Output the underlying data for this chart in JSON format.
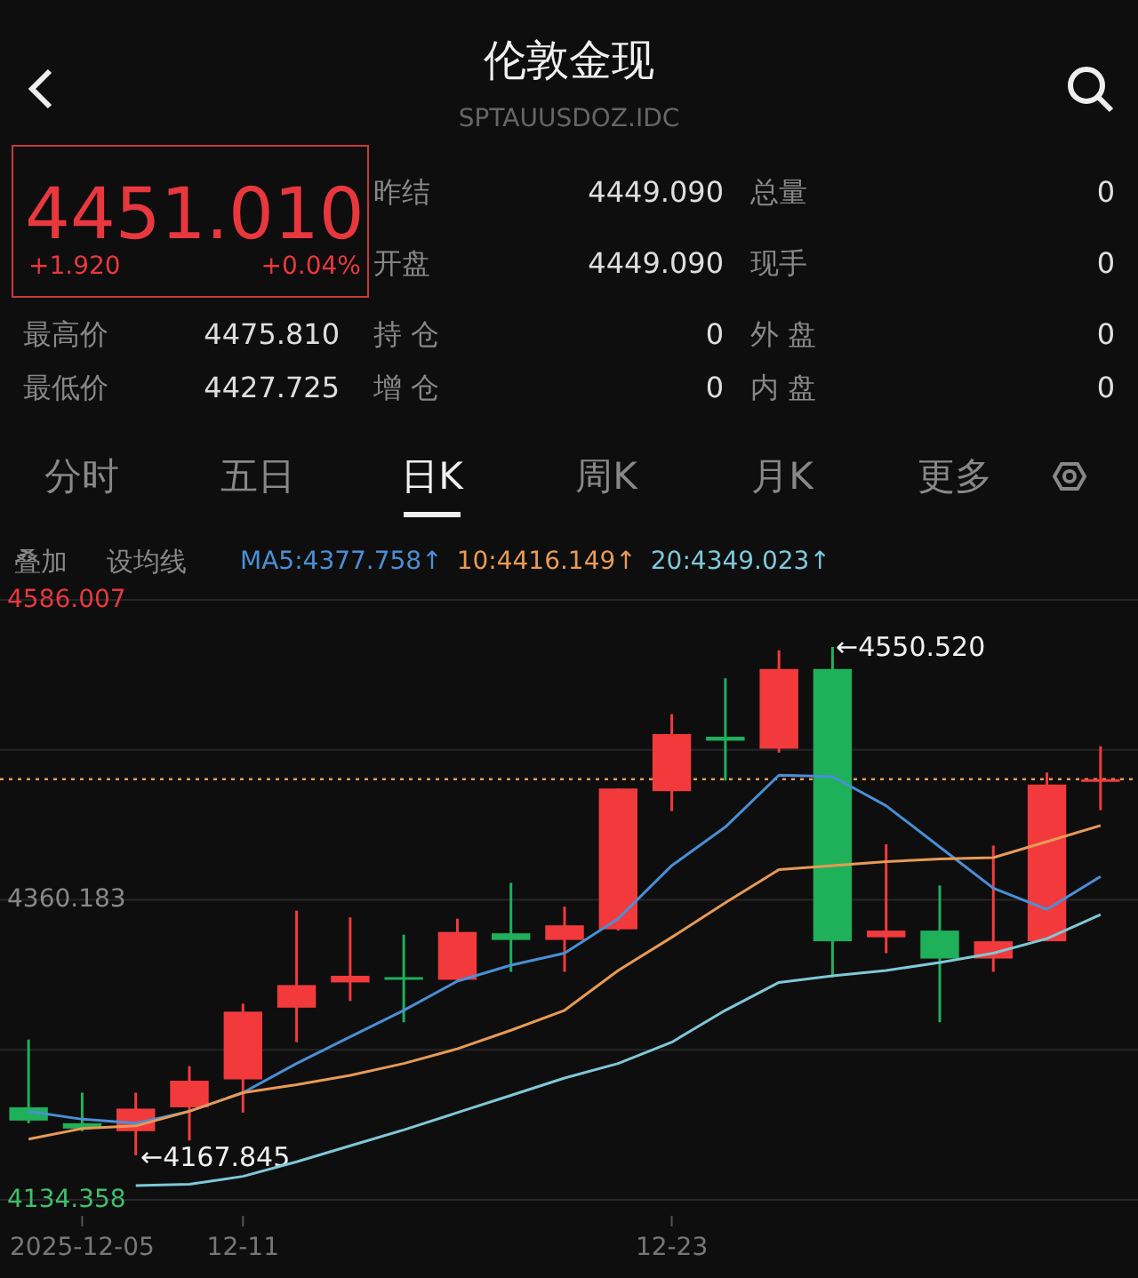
{
  "chart_data": {
    "type": "candlestick",
    "title": "伦敦金现",
    "subtitle": "SPTAUUSDOZ.IDC",
    "categories": [
      null,
      "2025-12-05",
      null,
      null,
      "12-11",
      null,
      null,
      null,
      null,
      null,
      null,
      null,
      "12-23",
      null,
      null,
      null,
      null,
      null,
      null,
      null,
      null
    ],
    "ohlc": [
      [
        4204,
        4255,
        4192,
        4194
      ],
      [
        4192,
        4215,
        4186,
        4188
      ],
      [
        4186,
        4215,
        4167.845,
        4203
      ],
      [
        4204,
        4235,
        4179,
        4224
      ],
      [
        4225,
        4282,
        4200,
        4276
      ],
      [
        4279,
        4352,
        4253,
        4296
      ],
      [
        4298,
        4347,
        4284,
        4303
      ],
      [
        4302,
        4334,
        4268,
        4300
      ],
      [
        4300,
        4346,
        4299,
        4336
      ],
      [
        4335,
        4373,
        4306,
        4330
      ],
      [
        4330,
        4355,
        4306,
        4341
      ],
      [
        4338,
        4444,
        4337,
        4444
      ],
      [
        4442,
        4500,
        4427,
        4485
      ],
      [
        4483,
        4527,
        4450,
        4480
      ],
      [
        4474,
        4548,
        4471,
        4534
      ],
      [
        4534,
        4550.52,
        4302,
        4329
      ],
      [
        4332,
        4402,
        4320,
        4337
      ],
      [
        4337,
        4371,
        4268,
        4316
      ],
      [
        4316,
        4401,
        4306,
        4329
      ],
      [
        4329,
        4456,
        4329,
        4447
      ],
      [
        4449.09,
        4475.81,
        4427.725,
        4451.01
      ]
    ],
    "colors": [
      "#1fb05a",
      "#1fb05a",
      "#f23a3c",
      "#f23a3c",
      "#f23a3c",
      "#f23a3c",
      "#f23a3c",
      "#1fb05a",
      "#f23a3c",
      "#1fb05a",
      "#f23a3c",
      "#f23a3c",
      "#f23a3c",
      "#1fb05a",
      "#f23a3c",
      "#1fb05a",
      "#f23a3c",
      "#1fb05a",
      "#f23a3c",
      "#f23a3c",
      "#f23a3c"
    ],
    "series": [
      {
        "name": "MA5:",
        "type": "line",
        "color": "#4a8fd6",
        "values": [
          4201,
          4195,
          4192,
          4201,
          4215,
          4237,
          4257,
          4277,
          4299,
          4311,
          4320,
          4346,
          4386,
          4415,
          4454,
          4453,
          4431,
          4400,
          4369,
          4353,
          4377.758
        ]
      },
      {
        "name": "10:",
        "type": "line",
        "color": "#e89a55",
        "values": [
          4180,
          4188,
          4190,
          4201,
          4215,
          4221,
          4228,
          4237,
          4248,
          4262,
          4277,
          4307,
          4332,
          4358,
          4383,
          4386,
          4389,
          4391,
          4392,
          4404,
          4416.149
        ]
      },
      {
        "name": "20:",
        "type": "line",
        "color": "#7fc8d8",
        "values": [
          null,
          null,
          4145,
          4146,
          4152,
          4163,
          4175,
          4187,
          4200,
          4213,
          4226,
          4237,
          4253,
          4277,
          4298,
          4303,
          4307,
          4313,
          4320,
          4331,
          4349.023
        ]
      }
    ],
    "ylim": [
      4134.358,
      4586.007
    ],
    "yticks": [
      4134.358,
      {
        "value": 4247.271,
        "label": null
      },
      4360.183,
      {
        "value": 4473.095,
        "label": null
      },
      4586.007
    ],
    "grid": "y",
    "legend": "top left",
    "marker": "none",
    "ref_lines": [
      {
        "axis": "y",
        "value": 4451.01,
        "color": "#e89a55",
        "line_style": "dotted"
      }
    ],
    "annotations": [
      "4451.010",
      "+1.920",
      "+0.04%",
      "昨结",
      "4449.090",
      "总量",
      "0",
      "开盘",
      "4449.090",
      "现手",
      "0",
      "最高价",
      "4475.810",
      "持 仓",
      "0",
      "外 盘",
      "0",
      "最低价",
      "4427.725",
      "增 仓",
      "0",
      "内 盘",
      "0",
      "分时",
      "五日",
      "日K",
      "周K",
      "月K",
      "更多",
      "叠加",
      "设均线",
      "←4550.520",
      "←4167.845",
      "4377.758↑",
      "4416.149↑",
      "4349.023↑"
    ]
  }
}
